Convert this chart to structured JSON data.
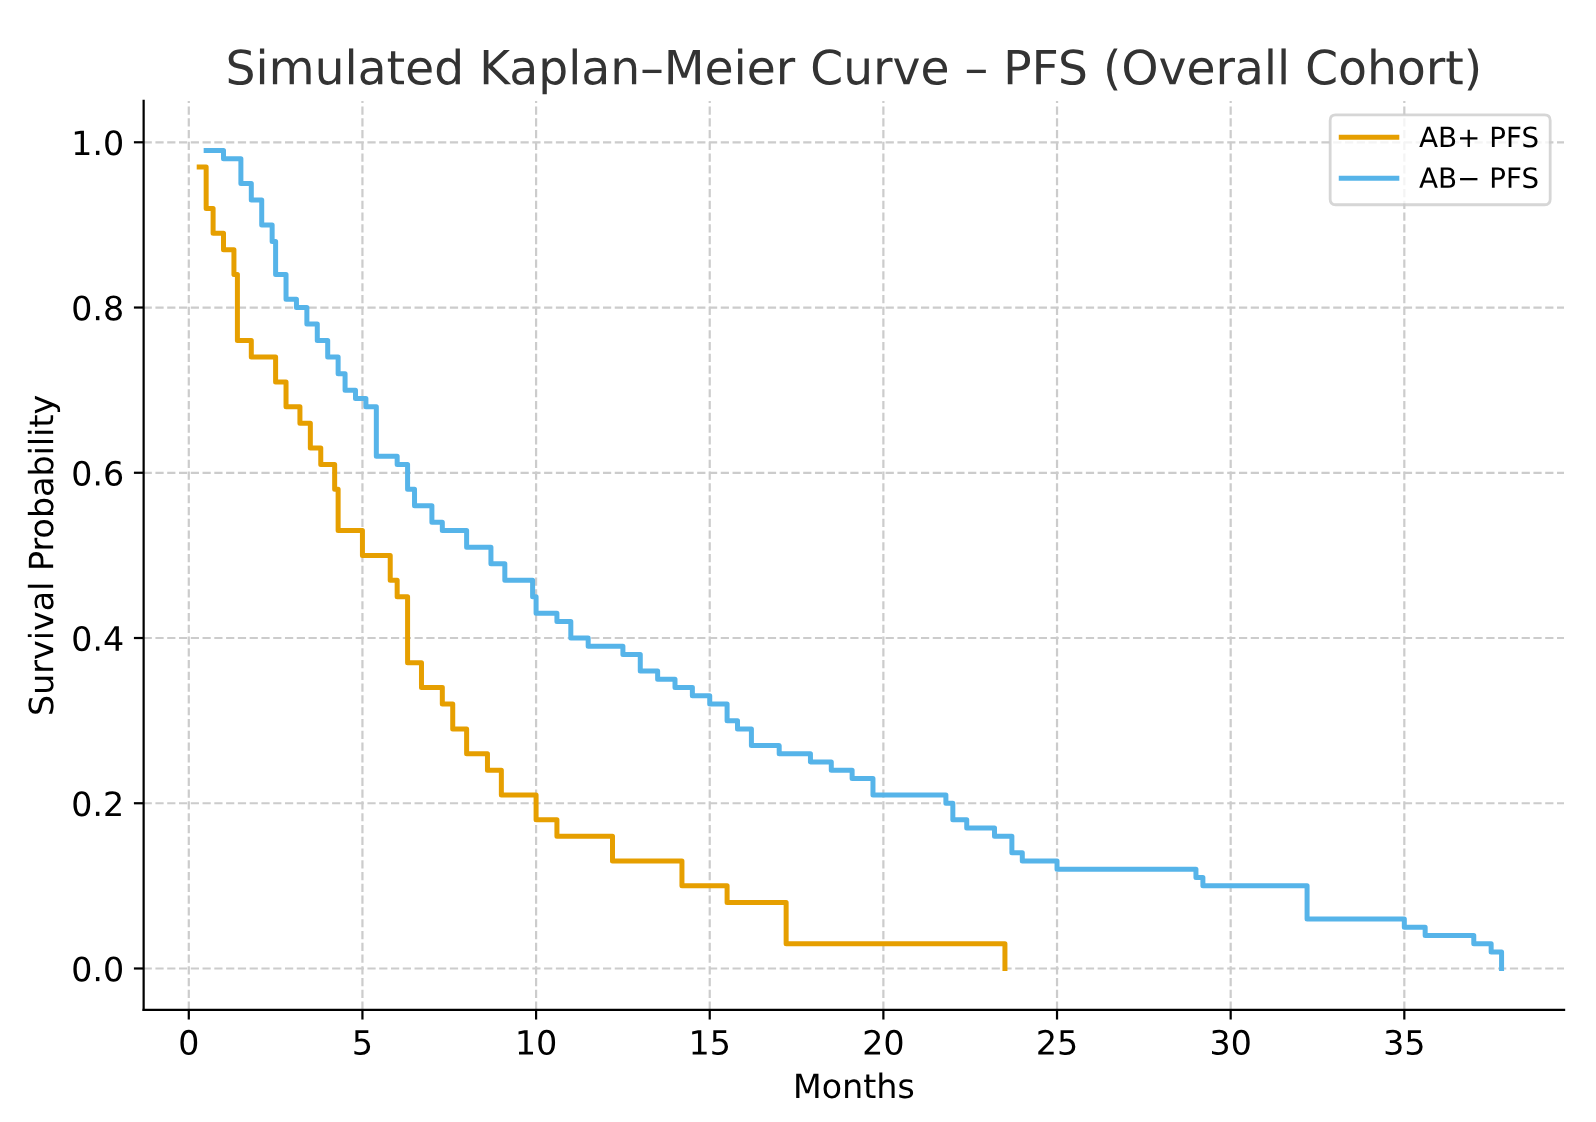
{
  "chart_data": {
    "type": "step",
    "title": "Simulated Kaplan–Meier Curve – PFS (Overall Cohort)",
    "xlabel": "Months",
    "ylabel": "Survival Probability",
    "series": [
      {
        "name": "AB+ PFS",
        "color": "#e69f00",
        "x": [
          0.3,
          0.5,
          0.7,
          1.0,
          1.3,
          1.4,
          1.8,
          2.5,
          2.8,
          3.2,
          3.5,
          3.8,
          4.2,
          4.3,
          5.0,
          5.8,
          6.0,
          6.3,
          6.7,
          7.3,
          7.6,
          8.0,
          8.6,
          9.0,
          10.0,
          10.6,
          12.2,
          14.2,
          15.5,
          17.2,
          23.5
        ],
        "values": [
          0.97,
          0.92,
          0.89,
          0.87,
          0.84,
          0.76,
          0.74,
          0.71,
          0.68,
          0.66,
          0.63,
          0.61,
          0.58,
          0.53,
          0.5,
          0.47,
          0.45,
          0.37,
          0.34,
          0.32,
          0.29,
          0.26,
          0.24,
          0.21,
          0.18,
          0.16,
          0.13,
          0.1,
          0.08,
          0.03,
          0.0
        ]
      },
      {
        "name": "AB− PFS",
        "color": "#56b4e9",
        "x": [
          0.5,
          1.0,
          1.5,
          1.8,
          2.1,
          2.4,
          2.5,
          2.8,
          3.1,
          3.4,
          3.7,
          4.0,
          4.3,
          4.5,
          4.8,
          5.1,
          5.4,
          6.0,
          6.3,
          6.5,
          7.0,
          7.3,
          8.0,
          8.7,
          9.1,
          9.9,
          10.0,
          10.6,
          11.0,
          11.5,
          12.5,
          13.0,
          13.5,
          14.0,
          14.5,
          15.0,
          15.5,
          15.8,
          16.2,
          17.0,
          17.9,
          18.5,
          19.1,
          19.7,
          21.8,
          22.0,
          22.4,
          23.2,
          23.7,
          24.0,
          25.0,
          29.0,
          29.2,
          32.2,
          35.0,
          35.6,
          37.0,
          37.5,
          37.8
        ],
        "values": [
          0.99,
          0.98,
          0.95,
          0.93,
          0.9,
          0.88,
          0.84,
          0.81,
          0.8,
          0.78,
          0.76,
          0.74,
          0.72,
          0.7,
          0.69,
          0.68,
          0.62,
          0.61,
          0.58,
          0.56,
          0.54,
          0.53,
          0.51,
          0.49,
          0.47,
          0.45,
          0.43,
          0.42,
          0.4,
          0.39,
          0.38,
          0.36,
          0.35,
          0.34,
          0.33,
          0.32,
          0.3,
          0.29,
          0.27,
          0.26,
          0.25,
          0.24,
          0.23,
          0.21,
          0.2,
          0.18,
          0.17,
          0.16,
          0.14,
          0.13,
          0.12,
          0.11,
          0.1,
          0.06,
          0.05,
          0.04,
          0.03,
          0.02,
          0.0
        ]
      }
    ],
    "xlim": [
      -1.3,
      39.6
    ],
    "xticks": [
      0,
      5,
      10,
      15,
      20,
      25,
      30,
      35
    ],
    "ylim": [
      -0.05,
      1.05
    ],
    "yticks": [
      {
        "value": 0,
        "label": "0.0"
      },
      0.2,
      0.4,
      0.6,
      0.8,
      {
        "value": 1,
        "label": "1.0"
      }
    ],
    "grid": true,
    "legend": "top right",
    "line_style": "solid"
  }
}
